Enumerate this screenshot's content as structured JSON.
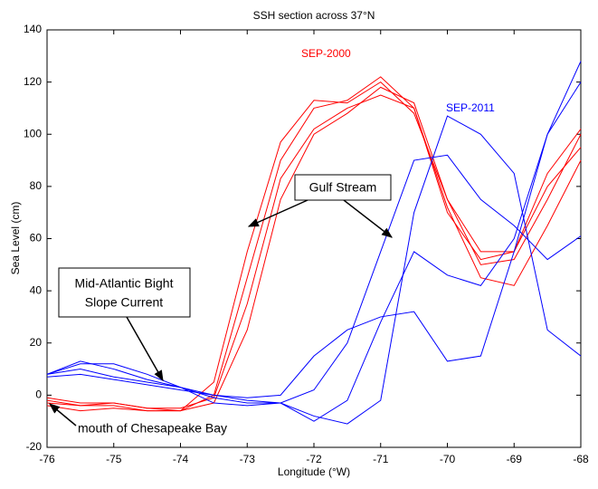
{
  "chart_data": {
    "type": "line",
    "title": "SSH section across 37°N",
    "x_label": "Longitude (°W)",
    "y_label": "Sea Level (cm)",
    "x": [
      -76,
      -75.5,
      -75,
      -74.5,
      -74,
      -73.5,
      -73,
      -72.5,
      -72,
      -71.5,
      -71,
      -70.5,
      -70,
      -69.5,
      -69,
      -68.5,
      -68
    ],
    "series": [
      {
        "color": "#ff0000",
        "values": [
          -1,
          -3,
          -3,
          -5,
          -6,
          5,
          55,
          97,
          113,
          112,
          120,
          108,
          75,
          50,
          52,
          75,
          100
        ]
      },
      {
        "color": "#ff0000",
        "values": [
          -3,
          -4,
          -4,
          -6,
          -6,
          0,
          45,
          90,
          110,
          113,
          122,
          110,
          72,
          45,
          42,
          65,
          90
        ]
      },
      {
        "color": "#ff0000",
        "values": [
          -2,
          -4,
          -3,
          -5,
          -5,
          -1,
          35,
          83,
          102,
          110,
          115,
          110,
          70,
          52,
          55,
          85,
          102
        ]
      },
      {
        "color": "#ff0000",
        "values": [
          -4,
          -6,
          -5,
          -6,
          -6,
          -3,
          25,
          75,
          100,
          108,
          118,
          112,
          75,
          55,
          55,
          80,
          95
        ]
      },
      {
        "color": "#0000ff",
        "values": [
          8,
          12,
          12,
          8,
          3,
          0,
          -2,
          -3,
          -8,
          -11,
          -2,
          70,
          107,
          100,
          85,
          25,
          15
        ]
      },
      {
        "color": "#0000ff",
        "values": [
          8,
          13,
          10,
          6,
          3,
          -1,
          -3,
          -3,
          2,
          20,
          55,
          90,
          92,
          75,
          65,
          52,
          61
        ]
      },
      {
        "color": "#0000ff",
        "values": [
          8,
          10,
          7,
          5,
          3,
          -3,
          -4,
          -3,
          -10,
          -2,
          28,
          55,
          46,
          42,
          60,
          100,
          128
        ]
      },
      {
        "color": "#0000ff",
        "values": [
          7,
          8,
          6,
          4,
          2,
          0,
          -1,
          0,
          15,
          25,
          30,
          32,
          13,
          15,
          55,
          100,
          120
        ]
      }
    ],
    "xlim": [
      -76,
      -68
    ],
    "xticks": [
      -76,
      -75,
      -74,
      -73,
      -72,
      -71,
      -70,
      -69,
      -68
    ],
    "ylim": [
      -20,
      140
    ],
    "yticks": [
      -20,
      0,
      20,
      40,
      60,
      80,
      100,
      120,
      140
    ],
    "annotations": [
      "SEP-2000",
      "SEP-2011",
      "Gulf Stream",
      "Mid-Atlantic Bight",
      "Slope Current",
      "mouth of Chesapeake Bay"
    ]
  }
}
